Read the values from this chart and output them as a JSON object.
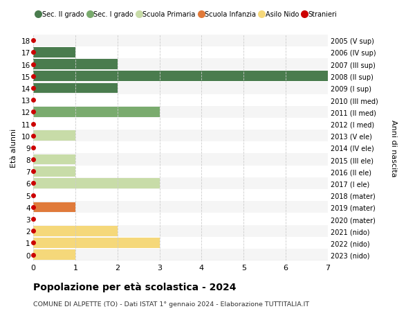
{
  "ages": [
    18,
    17,
    16,
    15,
    14,
    13,
    12,
    11,
    10,
    9,
    8,
    7,
    6,
    5,
    4,
    3,
    2,
    1,
    0
  ],
  "right_labels": [
    "2005 (V sup)",
    "2006 (IV sup)",
    "2007 (III sup)",
    "2008 (II sup)",
    "2009 (I sup)",
    "2010 (III med)",
    "2011 (II med)",
    "2012 (I med)",
    "2013 (V ele)",
    "2014 (IV ele)",
    "2015 (III ele)",
    "2016 (II ele)",
    "2017 (I ele)",
    "2018 (mater)",
    "2019 (mater)",
    "2020 (mater)",
    "2021 (nido)",
    "2022 (nido)",
    "2023 (nido)"
  ],
  "bars": [
    {
      "age": 18,
      "value": 0,
      "color": "#4a7c4e"
    },
    {
      "age": 17,
      "value": 1,
      "color": "#4a7c4e"
    },
    {
      "age": 16,
      "value": 2,
      "color": "#4a7c4e"
    },
    {
      "age": 15,
      "value": 7,
      "color": "#4a7c4e"
    },
    {
      "age": 14,
      "value": 2,
      "color": "#4a7c4e"
    },
    {
      "age": 13,
      "value": 0,
      "color": "#4a7c4e"
    },
    {
      "age": 12,
      "value": 3,
      "color": "#7aab6e"
    },
    {
      "age": 11,
      "value": 0,
      "color": "#7aab6e"
    },
    {
      "age": 10,
      "value": 1,
      "color": "#c8dca8"
    },
    {
      "age": 9,
      "value": 0,
      "color": "#c8dca8"
    },
    {
      "age": 8,
      "value": 1,
      "color": "#c8dca8"
    },
    {
      "age": 7,
      "value": 1,
      "color": "#c8dca8"
    },
    {
      "age": 6,
      "value": 3,
      "color": "#c8dca8"
    },
    {
      "age": 5,
      "value": 0,
      "color": "#e07a3a"
    },
    {
      "age": 4,
      "value": 1,
      "color": "#e07a3a"
    },
    {
      "age": 3,
      "value": 0,
      "color": "#e07a3a"
    },
    {
      "age": 2,
      "value": 2,
      "color": "#f5d87a"
    },
    {
      "age": 1,
      "value": 3,
      "color": "#f5d87a"
    },
    {
      "age": 0,
      "value": 1,
      "color": "#f5d87a"
    }
  ],
  "stranieri_ages": [
    18,
    17,
    16,
    15,
    14,
    13,
    12,
    11,
    10,
    9,
    8,
    7,
    6,
    5,
    4,
    3,
    2,
    1,
    0
  ],
  "xlim": [
    0,
    7
  ],
  "xticks": [
    0,
    1,
    2,
    3,
    4,
    5,
    6,
    7
  ],
  "ylabel_left": "Età alunni",
  "ylabel_right": "Anni di nascita",
  "title": "Popolazione per età scolastica - 2024",
  "subtitle": "COMUNE DI ALPETTE (TO) - Dati ISTAT 1° gennaio 2024 - Elaborazione TUTTITALIA.IT",
  "legend_labels": [
    "Sec. II grado",
    "Sec. I grado",
    "Scuola Primaria",
    "Scuola Infanzia",
    "Asilo Nido",
    "Stranieri"
  ],
  "legend_colors": [
    "#4a7c4e",
    "#7aab6e",
    "#c8dca8",
    "#e07a3a",
    "#f5d87a",
    "#cc0000"
  ],
  "stranieri_color": "#cc0000",
  "bar_height": 0.85,
  "background_color": "#ffffff",
  "grid_color": "#cccccc",
  "row_bg_even": "#f5f5f5",
  "row_bg_odd": "#ffffff"
}
